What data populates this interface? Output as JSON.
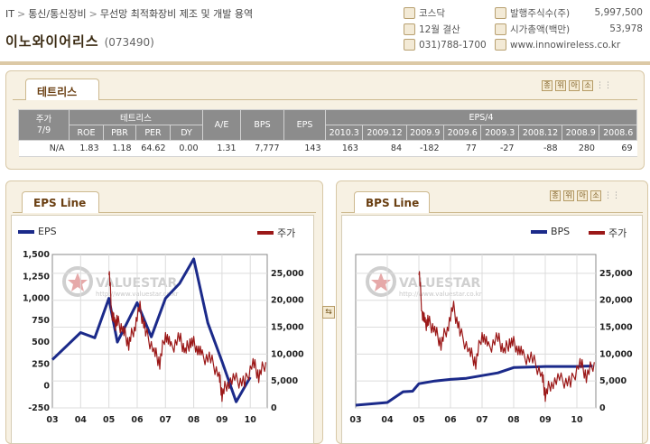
{
  "breadcrumb": {
    "items": [
      "IT",
      "통신/통신장비",
      "무선망 최적화장비 제조 및 개발 용역"
    ]
  },
  "company": {
    "name": "이노와이어리스",
    "code": "(073490)"
  },
  "info": {
    "market": "코스닥",
    "fiscal": "12월 결산",
    "phone": "031)788-1700",
    "shares_label": "발행주식수(주)",
    "shares_value": "5,997,500",
    "mcap_label": "시가총액(백만)",
    "mcap_value": "53,978",
    "website": "www.innowireless.co.kr"
  },
  "tetris_panel": {
    "tab": "테트리스",
    "buttons": [
      "종",
      "위",
      "아",
      "소"
    ],
    "table": {
      "price_header": [
        "주가",
        "7/9"
      ],
      "group_tetris": "테트리스",
      "sub_tetris": [
        "ROE",
        "PBR",
        "PER",
        "DY"
      ],
      "ae": "A/E",
      "bps": "BPS",
      "eps": "EPS",
      "group_eps4": "EPS/4",
      "periods": [
        "2010.3",
        "2009.12",
        "2009.9",
        "2009.6",
        "2009.3",
        "2008.12",
        "2008.9",
        "2008.6"
      ],
      "row": [
        "N/A",
        "1.83",
        "1.18",
        "64.62",
        "0.00",
        "1.31",
        "7,777",
        "143",
        "163",
        "84",
        "-182",
        "77",
        "-27",
        "-88",
        "280",
        "69"
      ]
    }
  },
  "eps_panel": {
    "tab": "EPS Line",
    "legend_left": "EPS",
    "legend_right": "주가",
    "colors": {
      "line": "#1b2a8a",
      "price": "#9b1818"
    }
  },
  "bps_panel": {
    "tab": "BPS Line",
    "buttons": [
      "종",
      "위",
      "아",
      "소"
    ],
    "legend_left": "BPS",
    "legend_right": "주가"
  },
  "watermark": {
    "brand": "VALUESTAR",
    "url": "http://www.valuestar.co.kr"
  },
  "chart_data": [
    {
      "type": "line",
      "x_ticks": [
        "03",
        "04",
        "05",
        "06",
        "07",
        "08",
        "09",
        "10"
      ],
      "y_left_ticks": [
        "1,500",
        "1,250",
        "1,000",
        "750",
        "500",
        "250",
        "0",
        "-250"
      ],
      "y_right_ticks": [
        "25,000",
        "20,000",
        "15,000",
        "10,000",
        "5,000",
        "0"
      ],
      "ylim_left": [
        -250,
        1500
      ],
      "ylim_right": [
        0,
        28500
      ],
      "xlim": [
        2003,
        2010.6
      ],
      "series": [
        {
          "name": "EPS",
          "axis": "left",
          "x": [
            2003.0,
            2004.0,
            2004.5,
            2005.0,
            2005.3,
            2006.0,
            2006.5,
            2007.0,
            2007.5,
            2008.0,
            2008.5,
            2009.0,
            2009.5,
            2010.0
          ],
          "values": [
            300,
            610,
            550,
            1000,
            500,
            950,
            560,
            1000,
            1170,
            1450,
            720,
            280,
            -180,
            100
          ]
        },
        {
          "name": "주가",
          "axis": "right",
          "x": [
            2005.0,
            2005.1,
            2005.2,
            2005.3,
            2005.5,
            2005.7,
            2005.9,
            2006.1,
            2006.3,
            2006.6,
            2006.8,
            2007.0,
            2007.2,
            2007.5,
            2007.7,
            2007.9,
            2008.1,
            2008.3,
            2008.6,
            2008.9,
            2009.0,
            2009.2,
            2009.5,
            2009.8,
            2010.1,
            2010.3,
            2010.55
          ],
          "values": [
            26000,
            18000,
            15500,
            16000,
            14500,
            12000,
            15000,
            18500,
            14000,
            10500,
            8500,
            14000,
            11000,
            13000,
            10500,
            12500,
            11500,
            9500,
            9000,
            6000,
            2500,
            4800,
            5200,
            4500,
            8500,
            6000,
            8500
          ]
        }
      ],
      "legend": "top"
    },
    {
      "type": "line",
      "x_ticks": [
        "03",
        "04",
        "05",
        "06",
        "07",
        "08",
        "09",
        "10"
      ],
      "y_right_ticks": [
        "25,000",
        "20,000",
        "15,000",
        "10,000",
        "5,000",
        "0"
      ],
      "ylim_right": [
        0,
        28500
      ],
      "xlim": [
        2003,
        2010.6
      ],
      "series": [
        {
          "name": "BPS",
          "axis": "right",
          "x": [
            2003.0,
            2004.0,
            2004.5,
            2004.8,
            2005.0,
            2005.5,
            2006.0,
            2006.5,
            2007.0,
            2007.5,
            2008.0,
            2008.5,
            2009.0,
            2009.5,
            2010.0,
            2010.25,
            2010.5
          ],
          "values": [
            500,
            1000,
            3000,
            3100,
            4500,
            5000,
            5300,
            5500,
            6000,
            6500,
            7500,
            7600,
            7700,
            7700,
            7700,
            7750,
            7777
          ]
        },
        {
          "name": "주가",
          "axis": "right",
          "x": [
            2005.0,
            2005.1,
            2005.2,
            2005.3,
            2005.5,
            2005.7,
            2005.9,
            2006.1,
            2006.3,
            2006.6,
            2006.8,
            2007.0,
            2007.2,
            2007.5,
            2007.7,
            2007.9,
            2008.1,
            2008.3,
            2008.6,
            2008.9,
            2009.0,
            2009.2,
            2009.5,
            2009.8,
            2010.1,
            2010.3,
            2010.55
          ],
          "values": [
            26000,
            18000,
            15500,
            16000,
            14500,
            12000,
            15000,
            18500,
            14000,
            10500,
            8500,
            14000,
            11000,
            13000,
            10500,
            12500,
            11500,
            9500,
            9000,
            6000,
            2500,
            4800,
            5200,
            4500,
            8500,
            6000,
            8500
          ]
        }
      ],
      "legend": "top"
    }
  ]
}
